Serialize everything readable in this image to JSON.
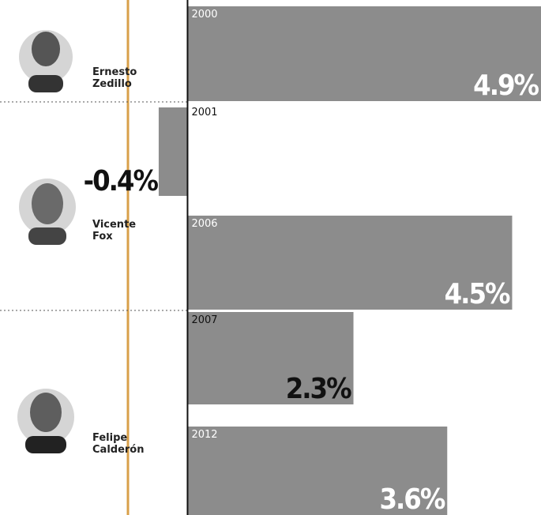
{
  "chart_data": {
    "type": "bar",
    "orientation": "horizontal",
    "categories": [
      "2000",
      "2001",
      "2006",
      "2007",
      "2012"
    ],
    "values": [
      4.9,
      -0.4,
      4.5,
      2.3,
      3.6
    ],
    "value_labels": [
      "4.9%",
      "-0.4%",
      "4.5%",
      "2.3%",
      "3.6%"
    ],
    "color": "#8c8c8c",
    "xlim": [
      -2.6,
      4.9
    ],
    "presidents": [
      "Ernesto Zedillo",
      "Vicente Fox",
      "Felipe Calderón"
    ]
  }
}
